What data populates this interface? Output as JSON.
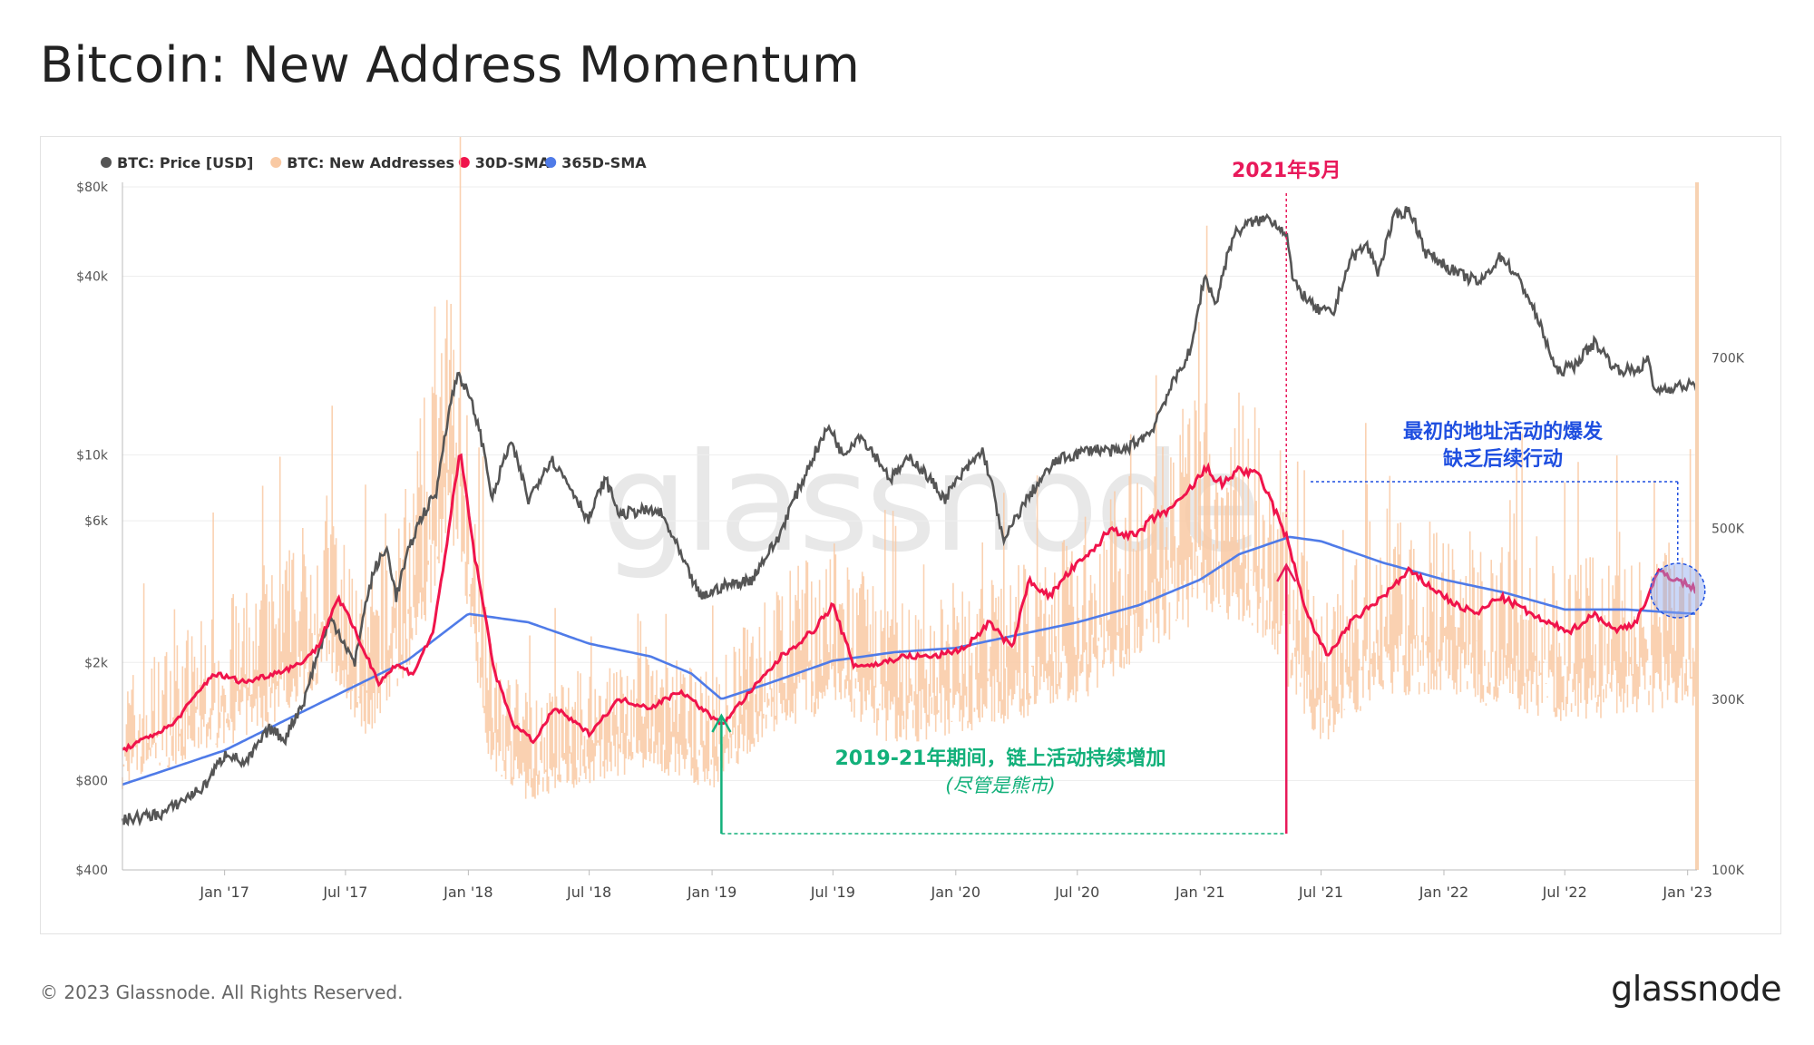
{
  "title": "Bitcoin: New Address Momentum",
  "footer": {
    "copyright": "© 2023 Glassnode. All Rights Reserved.",
    "logo": "glassnode"
  },
  "watermark": "glassnode",
  "colors": {
    "price": "#555555",
    "new_addresses": "#f9c9a3",
    "sma30": "#f0144b",
    "sma365": "#4f7be8",
    "annotation_green": "#12b07a",
    "annotation_blue": "#1f4fe0",
    "annotation_red": "#e8195a"
  },
  "chart_data": {
    "type": "line",
    "legend": {
      "placement": "top-left",
      "items": [
        {
          "label": "BTC: Price [USD]",
          "color": "#555555"
        },
        {
          "label": "BTC: New Addresses",
          "color": "#f9c9a3"
        },
        {
          "label": "30D-SMA",
          "color": "#f0144b"
        },
        {
          "label": "365D-SMA",
          "color": "#4f7be8"
        }
      ]
    },
    "x_axis": {
      "range": [
        "2016-08-01",
        "2023-01-15"
      ],
      "ticks": [
        {
          "date": "2017-01-01",
          "label": "Jan '17"
        },
        {
          "date": "2017-07-01",
          "label": "Jul '17"
        },
        {
          "date": "2018-01-01",
          "label": "Jan '18"
        },
        {
          "date": "2018-07-01",
          "label": "Jul '18"
        },
        {
          "date": "2019-01-01",
          "label": "Jan '19"
        },
        {
          "date": "2019-07-01",
          "label": "Jul '19"
        },
        {
          "date": "2020-01-01",
          "label": "Jan '20"
        },
        {
          "date": "2020-07-01",
          "label": "Jul '20"
        },
        {
          "date": "2021-01-01",
          "label": "Jan '21"
        },
        {
          "date": "2021-07-01",
          "label": "Jul '21"
        },
        {
          "date": "2022-01-01",
          "label": "Jan '22"
        },
        {
          "date": "2022-07-01",
          "label": "Jul '22"
        },
        {
          "date": "2023-01-01",
          "label": "Jan '23"
        }
      ]
    },
    "y_left": {
      "scale": "log",
      "range": [
        400,
        80000
      ],
      "ticks": [
        {
          "value": 400,
          "label": "$400"
        },
        {
          "value": 800,
          "label": "$800"
        },
        {
          "value": 2000,
          "label": "$2k"
        },
        {
          "value": 6000,
          "label": "$6k"
        },
        {
          "value": 10000,
          "label": "$10k"
        },
        {
          "value": 40000,
          "label": "$40k"
        },
        {
          "value": 80000,
          "label": "$80k"
        }
      ]
    },
    "y_right": {
      "scale": "linear",
      "range": [
        100000,
        900000
      ],
      "ticks": [
        {
          "value": 100000,
          "label": "100K"
        },
        {
          "value": 300000,
          "label": "300K"
        },
        {
          "value": 500000,
          "label": "500K"
        },
        {
          "value": 700000,
          "label": "700K"
        }
      ]
    },
    "series": [
      {
        "name": "BTC: Price [USD]",
        "axis": "left",
        "points": [
          [
            "2016-08-01",
            590
          ],
          [
            "2016-10-01",
            620
          ],
          [
            "2016-12-01",
            760
          ],
          [
            "2017-01-05",
            1000
          ],
          [
            "2017-02-01",
            900
          ],
          [
            "2017-03-10",
            1200
          ],
          [
            "2017-04-01",
            1100
          ],
          [
            "2017-05-01",
            1500
          ],
          [
            "2017-06-10",
            2800
          ],
          [
            "2017-07-15",
            1950
          ],
          [
            "2017-08-15",
            4200
          ],
          [
            "2017-09-01",
            4800
          ],
          [
            "2017-09-15",
            3300
          ],
          [
            "2017-10-20",
            6000
          ],
          [
            "2017-11-15",
            7500
          ],
          [
            "2017-12-17",
            19000
          ],
          [
            "2018-01-10",
            14000
          ],
          [
            "2018-02-06",
            7000
          ],
          [
            "2018-03-05",
            11000
          ],
          [
            "2018-04-01",
            7000
          ],
          [
            "2018-05-05",
            9700
          ],
          [
            "2018-06-30",
            6000
          ],
          [
            "2018-07-25",
            8300
          ],
          [
            "2018-08-15",
            6300
          ],
          [
            "2018-09-15",
            6500
          ],
          [
            "2018-10-15",
            6400
          ],
          [
            "2018-11-20",
            4300
          ],
          [
            "2018-12-15",
            3300
          ],
          [
            "2019-01-15",
            3600
          ],
          [
            "2019-03-01",
            3800
          ],
          [
            "2019-04-10",
            5200
          ],
          [
            "2019-05-15",
            8000
          ],
          [
            "2019-06-26",
            12500
          ],
          [
            "2019-07-15",
            10000
          ],
          [
            "2019-08-10",
            11700
          ],
          [
            "2019-09-25",
            8300
          ],
          [
            "2019-10-26",
            9800
          ],
          [
            "2019-12-15",
            7100
          ],
          [
            "2020-02-10",
            10300
          ],
          [
            "2020-03-12",
            5000
          ],
          [
            "2020-04-15",
            7000
          ],
          [
            "2020-06-01",
            9600
          ],
          [
            "2020-07-25",
            10500
          ],
          [
            "2020-09-05",
            10200
          ],
          [
            "2020-10-20",
            12000
          ],
          [
            "2020-11-25",
            18000
          ],
          [
            "2020-12-20",
            23000
          ],
          [
            "2021-01-08",
            40000
          ],
          [
            "2021-01-25",
            32000
          ],
          [
            "2021-02-20",
            55000
          ],
          [
            "2021-03-13",
            60000
          ],
          [
            "2021-04-14",
            63000
          ],
          [
            "2021-05-10",
            56000
          ],
          [
            "2021-05-20",
            38000
          ],
          [
            "2021-06-22",
            31000
          ],
          [
            "2021-07-20",
            30000
          ],
          [
            "2021-08-15",
            46000
          ],
          [
            "2021-09-07",
            51000
          ],
          [
            "2021-09-25",
            41000
          ],
          [
            "2021-10-20",
            64000
          ],
          [
            "2021-11-10",
            67000
          ],
          [
            "2021-12-05",
            48000
          ],
          [
            "2022-01-20",
            41000
          ],
          [
            "2022-02-25",
            38000
          ],
          [
            "2022-03-28",
            47000
          ],
          [
            "2022-05-05",
            35000
          ],
          [
            "2022-05-20",
            29000
          ],
          [
            "2022-06-18",
            19000
          ],
          [
            "2022-07-15",
            20000
          ],
          [
            "2022-08-15",
            24000
          ],
          [
            "2022-09-15",
            19500
          ],
          [
            "2022-10-15",
            19200
          ],
          [
            "2022-11-05",
            21000
          ],
          [
            "2022-11-10",
            16500
          ],
          [
            "2022-12-15",
            17000
          ],
          [
            "2023-01-10",
            17200
          ]
        ]
      },
      {
        "name": "BTC: New Addresses",
        "axis": "right",
        "points": [
          [
            "2016-08-01",
            270000
          ],
          [
            "2016-12-01",
            330000
          ],
          [
            "2017-03-01",
            360000
          ],
          [
            "2017-06-01",
            450000
          ],
          [
            "2017-08-01",
            350000
          ],
          [
            "2017-10-01",
            460000
          ],
          [
            "2017-12-15",
            680000
          ],
          [
            "2018-02-01",
            310000
          ],
          [
            "2018-04-01",
            250000
          ],
          [
            "2018-07-01",
            280000
          ],
          [
            "2018-10-01",
            300000
          ],
          [
            "2019-01-01",
            270000
          ],
          [
            "2019-04-01",
            360000
          ],
          [
            "2019-07-01",
            400000
          ],
          [
            "2019-10-01",
            340000
          ],
          [
            "2020-01-01",
            360000
          ],
          [
            "2020-04-01",
            380000
          ],
          [
            "2020-07-01",
            410000
          ],
          [
            "2020-10-01",
            470000
          ],
          [
            "2021-01-15",
            560000
          ],
          [
            "2021-04-01",
            520000
          ],
          [
            "2021-07-01",
            340000
          ],
          [
            "2021-10-01",
            420000
          ],
          [
            "2022-01-01",
            420000
          ],
          [
            "2022-04-01",
            400000
          ],
          [
            "2022-07-01",
            380000
          ],
          [
            "2022-10-01",
            390000
          ],
          [
            "2023-01-10",
            400000
          ]
        ]
      },
      {
        "name": "30D-SMA",
        "axis": "right",
        "points": [
          [
            "2016-08-01",
            240000
          ],
          [
            "2016-10-15",
            270000
          ],
          [
            "2016-12-15",
            330000
          ],
          [
            "2017-02-01",
            320000
          ],
          [
            "2017-03-15",
            330000
          ],
          [
            "2017-04-20",
            340000
          ],
          [
            "2017-05-20",
            360000
          ],
          [
            "2017-06-20",
            420000
          ],
          [
            "2017-07-15",
            380000
          ],
          [
            "2017-08-20",
            320000
          ],
          [
            "2017-09-15",
            340000
          ],
          [
            "2017-10-10",
            330000
          ],
          [
            "2017-11-10",
            380000
          ],
          [
            "2017-12-20",
            590000
          ],
          [
            "2018-01-10",
            470000
          ],
          [
            "2018-02-10",
            330000
          ],
          [
            "2018-03-10",
            270000
          ],
          [
            "2018-04-10",
            250000
          ],
          [
            "2018-05-10",
            290000
          ],
          [
            "2018-07-01",
            260000
          ],
          [
            "2018-08-15",
            300000
          ],
          [
            "2018-10-01",
            290000
          ],
          [
            "2018-11-15",
            310000
          ],
          [
            "2019-01-15",
            270000
          ],
          [
            "2019-03-01",
            310000
          ],
          [
            "2019-04-15",
            350000
          ],
          [
            "2019-06-01",
            380000
          ],
          [
            "2019-07-01",
            410000
          ],
          [
            "2019-08-01",
            340000
          ],
          [
            "2019-09-01",
            340000
          ],
          [
            "2019-10-15",
            350000
          ],
          [
            "2019-12-01",
            350000
          ],
          [
            "2020-01-15",
            360000
          ],
          [
            "2020-02-20",
            390000
          ],
          [
            "2020-03-25",
            360000
          ],
          [
            "2020-04-20",
            440000
          ],
          [
            "2020-05-20",
            420000
          ],
          [
            "2020-06-20",
            450000
          ],
          [
            "2020-07-20",
            470000
          ],
          [
            "2020-08-20",
            500000
          ],
          [
            "2020-09-25",
            490000
          ],
          [
            "2020-10-20",
            510000
          ],
          [
            "2020-12-01",
            530000
          ],
          [
            "2021-01-10",
            570000
          ],
          [
            "2021-02-05",
            550000
          ],
          [
            "2021-02-25",
            570000
          ],
          [
            "2021-04-01",
            560000
          ],
          [
            "2021-05-10",
            490000
          ],
          [
            "2021-06-10",
            400000
          ],
          [
            "2021-07-10",
            350000
          ],
          [
            "2021-08-15",
            390000
          ],
          [
            "2021-10-01",
            420000
          ],
          [
            "2021-11-10",
            450000
          ],
          [
            "2021-12-15",
            430000
          ],
          [
            "2022-01-20",
            410000
          ],
          [
            "2022-02-20",
            400000
          ],
          [
            "2022-03-25",
            420000
          ],
          [
            "2022-04-20",
            410000
          ],
          [
            "2022-06-01",
            390000
          ],
          [
            "2022-07-10",
            380000
          ],
          [
            "2022-08-15",
            400000
          ],
          [
            "2022-09-15",
            380000
          ],
          [
            "2022-10-15",
            390000
          ],
          [
            "2022-11-20",
            450000
          ],
          [
            "2022-12-15",
            440000
          ],
          [
            "2023-01-10",
            430000
          ]
        ]
      },
      {
        "name": "365D-SMA",
        "axis": "right",
        "points": [
          [
            "2016-08-01",
            200000
          ],
          [
            "2017-01-01",
            240000
          ],
          [
            "2017-04-01",
            275000
          ],
          [
            "2017-07-01",
            310000
          ],
          [
            "2017-10-01",
            345000
          ],
          [
            "2018-01-01",
            400000
          ],
          [
            "2018-04-01",
            390000
          ],
          [
            "2018-07-01",
            365000
          ],
          [
            "2018-10-01",
            350000
          ],
          [
            "2018-12-01",
            330000
          ],
          [
            "2019-01-15",
            300000
          ],
          [
            "2019-04-01",
            320000
          ],
          [
            "2019-07-01",
            345000
          ],
          [
            "2019-10-01",
            355000
          ],
          [
            "2020-01-01",
            360000
          ],
          [
            "2020-04-01",
            375000
          ],
          [
            "2020-07-01",
            390000
          ],
          [
            "2020-10-01",
            410000
          ],
          [
            "2021-01-01",
            440000
          ],
          [
            "2021-03-01",
            470000
          ],
          [
            "2021-05-15",
            490000
          ],
          [
            "2021-07-01",
            485000
          ],
          [
            "2021-10-01",
            460000
          ],
          [
            "2022-01-01",
            440000
          ],
          [
            "2022-04-01",
            425000
          ],
          [
            "2022-07-01",
            405000
          ],
          [
            "2022-10-01",
            405000
          ],
          [
            "2023-01-10",
            400000
          ]
        ]
      }
    ],
    "annotations": [
      {
        "text": "2021年5月",
        "date": "2021-05-10",
        "color": "#e8195a"
      },
      {
        "text": "2019-21年期间，链上活动持续增加",
        "subtext": "(尽管是熊市)",
        "color": "#12b07a",
        "from": "2019-01-15",
        "to": "2021-05-10"
      },
      {
        "text": "最初的地址活动的爆发",
        "subtext": "缺乏后续行动",
        "color": "#1f4fe0",
        "date": "2022-11-20"
      }
    ]
  }
}
